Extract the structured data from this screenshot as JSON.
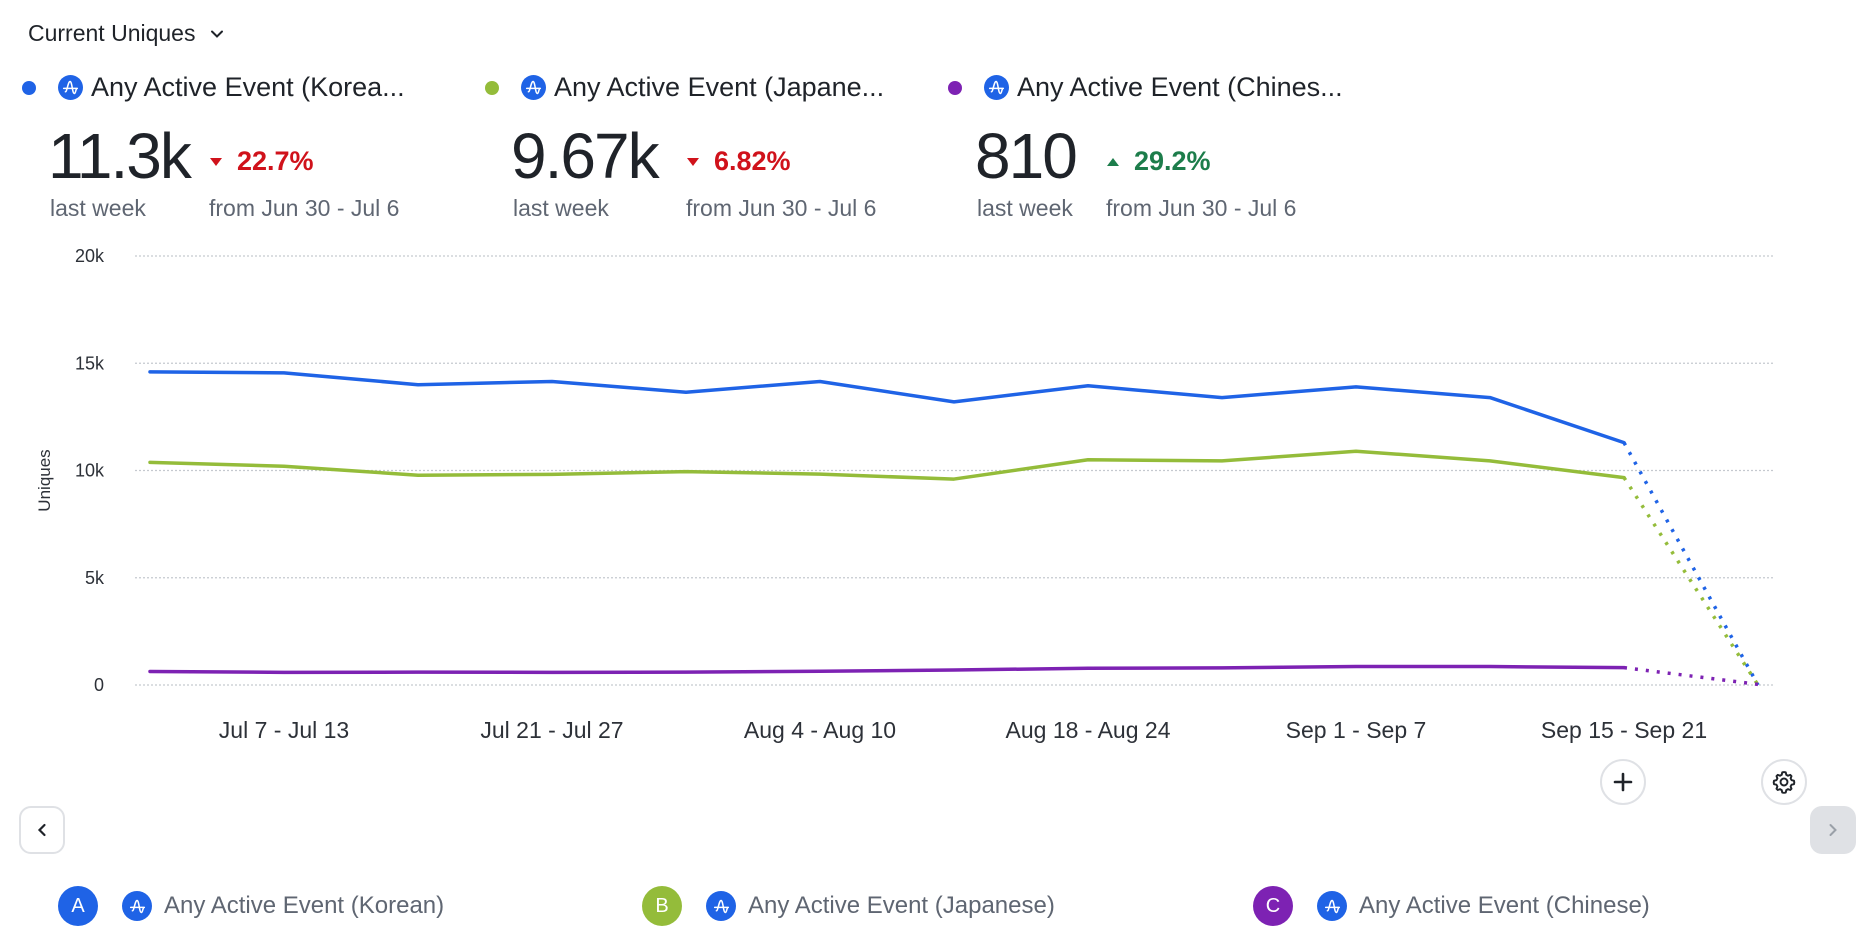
{
  "metric_selector": {
    "label": "Current Uniques",
    "icon": "chevron-down-icon"
  },
  "series": [
    {
      "key": "A",
      "name_truncated": "Any Active Event (Korea...",
      "name": "Any Active Event (Korean)",
      "color": "#1f63e6",
      "value": "11.3k",
      "value_caption": "last week",
      "delta": "22.7%",
      "delta_direction": "down",
      "delta_color": "#d0121b",
      "delta_caption": "from Jun 30 - Jul 6"
    },
    {
      "key": "B",
      "name_truncated": "Any Active Event (Japane...",
      "name": "Any Active Event (Japanese)",
      "color": "#94bc3a",
      "value": "9.67k",
      "value_caption": "last week",
      "delta": "6.82%",
      "delta_direction": "down",
      "delta_color": "#d0121b",
      "delta_caption": "from Jun 30 - Jul 6"
    },
    {
      "key": "C",
      "name_truncated": "Any Active Event (Chines...",
      "name": "Any Active Event (Chinese)",
      "color": "#7d22b3",
      "value": "810",
      "value_caption": "last week",
      "delta": "29.2%",
      "delta_direction": "up",
      "delta_color": "#1d7d4b",
      "delta_caption": "from Jun 30 - Jul 6"
    }
  ],
  "event_icon": "amplitude-event-icon",
  "event_icon_color": "#1f63e6",
  "controls": {
    "add_icon": "plus-icon",
    "settings_icon": "gear-icon",
    "prev_icon": "chevron-left-icon",
    "next_icon": "chevron-right-icon"
  },
  "chart_data": {
    "type": "line",
    "title": "",
    "xlabel": "",
    "ylabel": "Uniques",
    "ylim": [
      0,
      20000
    ],
    "yticks": [
      0,
      5000,
      10000,
      15000,
      20000
    ],
    "ytick_labels": [
      "0",
      "5k",
      "10k",
      "15k",
      "20k"
    ],
    "grid": true,
    "x": [
      "Jun 30 - Jul 6",
      "Jul 7 - Jul 13",
      "Jul 14 - Jul 20",
      "Jul 21 - Jul 27",
      "Jul 28 - Aug 3",
      "Aug 4 - Aug 10",
      "Aug 11 - Aug 17",
      "Aug 18 - Aug 24",
      "Aug 25 - Aug 31",
      "Sep 1 - Sep 7",
      "Sep 8 - Sep 14",
      "Sep 15 - Sep 21",
      "Sep 22 - Sep 28"
    ],
    "xtick_labels": [
      {
        "index": 1,
        "label": "Jul 7 - Jul 13"
      },
      {
        "index": 3,
        "label": "Jul 21 - Jul 27"
      },
      {
        "index": 5,
        "label": "Aug 4 - Aug 10"
      },
      {
        "index": 7,
        "label": "Aug 18 - Aug 24"
      },
      {
        "index": 9,
        "label": "Sep 1 - Sep 7"
      },
      {
        "index": 11,
        "label": "Sep 15 - Sep 21"
      }
    ],
    "incomplete_from_index": 11,
    "series": [
      {
        "name": "Any Active Event (Korean)",
        "color": "#1f63e6",
        "values": [
          14600,
          14550,
          14000,
          14150,
          13650,
          14150,
          13200,
          13950,
          13400,
          13900,
          13400,
          11300,
          0
        ]
      },
      {
        "name": "Any Active Event (Japanese)",
        "color": "#94bc3a",
        "values": [
          10380,
          10200,
          9780,
          9820,
          9950,
          9830,
          9600,
          10500,
          10450,
          10900,
          10450,
          9670,
          0
        ]
      },
      {
        "name": "Any Active Event (Chinese)",
        "color": "#7d22b3",
        "values": [
          627,
          590,
          600,
          590,
          600,
          640,
          700,
          780,
          800,
          860,
          860,
          810,
          30
        ]
      }
    ]
  }
}
